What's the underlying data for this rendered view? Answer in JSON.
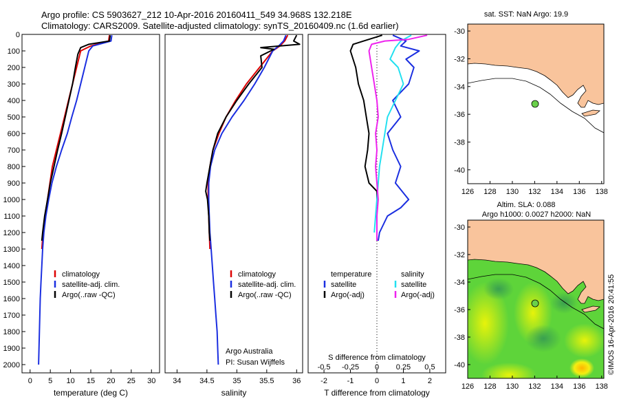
{
  "header": {
    "line1": "Argo profile: CS 5903627_212 10-Apr-2016 20160411_549 34.968S 132.218E",
    "line2": "Climatology: CARS2009. Satellite-adjusted climatology: synTS_20160409.nc (1.6d earlier)"
  },
  "colors": {
    "climatology": "#dd0000",
    "satellite": "#1a2ee0",
    "argo": "#000000",
    "satellite_s": "#22e0f0",
    "argo_s": "#ee22ee",
    "land": "#f9c49c"
  },
  "chart_data": [
    {
      "type": "line",
      "name": "temperature-profile",
      "xlabel": "temperature (deg C)",
      "ylabel": "",
      "xlim": [
        -2,
        32
      ],
      "ylim": [
        2050,
        0
      ],
      "xticks": [
        0,
        5,
        10,
        15,
        20,
        25,
        30
      ],
      "yticks": [
        0,
        100,
        200,
        300,
        400,
        500,
        600,
        700,
        800,
        900,
        1000,
        1100,
        1200,
        1300,
        1400,
        1500,
        1600,
        1700,
        1800,
        1900,
        2000
      ],
      "legend": [
        "climatology",
        "satellite-adj. clim.",
        "Argo(..raw -QC)"
      ],
      "legend_position": "lower-left",
      "series": [
        {
          "name": "climatology",
          "color": "#dd0000",
          "points": [
            [
              19.6,
              5
            ],
            [
              19.4,
              40
            ],
            [
              15,
              70
            ],
            [
              12.5,
              100
            ],
            [
              11.5,
              200
            ],
            [
              10.5,
              300
            ],
            [
              9.5,
              400
            ],
            [
              8.5,
              500
            ],
            [
              7.5,
              600
            ],
            [
              6.5,
              700
            ],
            [
              5.5,
              800
            ],
            [
              4.9,
              900
            ],
            [
              4.3,
              1000
            ],
            [
              3.7,
              1100
            ],
            [
              3.2,
              1200
            ],
            [
              2.9,
              1300
            ]
          ]
        },
        {
          "name": "satellite-adj. clim.",
          "color": "#1a2ee0",
          "points": [
            [
              20.2,
              5
            ],
            [
              20,
              40
            ],
            [
              15.5,
              70
            ],
            [
              14.5,
              100
            ],
            [
              13.5,
              200
            ],
            [
              12.5,
              300
            ],
            [
              11.5,
              400
            ],
            [
              10.3,
              500
            ],
            [
              9.2,
              600
            ],
            [
              7.8,
              700
            ],
            [
              6.5,
              800
            ],
            [
              5.4,
              900
            ],
            [
              4.6,
              1000
            ],
            [
              3.9,
              1100
            ],
            [
              3.4,
              1200
            ],
            [
              3.1,
              1300
            ],
            [
              2.9,
              1400
            ],
            [
              2.7,
              1500
            ],
            [
              2.5,
              1600
            ],
            [
              2.4,
              1700
            ],
            [
              2.3,
              1800
            ],
            [
              2.2,
              1900
            ],
            [
              2.1,
              2000
            ]
          ]
        },
        {
          "name": "Argo(..raw -QC)",
          "color": "#000000",
          "points": [
            [
              19.8,
              5
            ],
            [
              19.6,
              40
            ],
            [
              14.5,
              60
            ],
            [
              12.5,
              80
            ],
            [
              11.8,
              120
            ],
            [
              11.2,
              200
            ],
            [
              10.5,
              300
            ],
            [
              9.6,
              400
            ],
            [
              8.7,
              500
            ],
            [
              7.8,
              600
            ],
            [
              6.8,
              700
            ],
            [
              5.9,
              800
            ],
            [
              5.0,
              900
            ],
            [
              4.3,
              1000
            ],
            [
              3.6,
              1100
            ],
            [
              3.1,
              1200
            ],
            [
              2.9,
              1250
            ]
          ]
        }
      ]
    },
    {
      "type": "line",
      "name": "salinity-profile",
      "xlabel": "salinity",
      "xlim": [
        33.8,
        36.1
      ],
      "ylim": [
        2050,
        0
      ],
      "xticks": [
        34,
        34.5,
        35,
        35.5,
        36
      ],
      "xticklabels": [
        "34",
        "34.5",
        "35",
        "35.5",
        "36"
      ],
      "legend": [
        "climatology",
        "satellite-adj. clim.",
        "Argo(..raw -QC)"
      ],
      "legend_position": "middle-right",
      "annotation": [
        "Argo Australia",
        "PI: Susan Wijffels"
      ],
      "series": [
        {
          "name": "climatology",
          "color": "#dd0000",
          "points": [
            [
              35.85,
              5
            ],
            [
              35.8,
              40
            ],
            [
              35.72,
              70
            ],
            [
              35.6,
              100
            ],
            [
              35.38,
              200
            ],
            [
              35.16,
              300
            ],
            [
              34.98,
              400
            ],
            [
              34.82,
              500
            ],
            [
              34.7,
              600
            ],
            [
              34.6,
              700
            ],
            [
              34.55,
              800
            ],
            [
              34.52,
              900
            ],
            [
              34.52,
              1000
            ],
            [
              34.53,
              1100
            ],
            [
              34.54,
              1200
            ],
            [
              34.55,
              1300
            ]
          ]
        },
        {
          "name": "satellite-adj. clim.",
          "color": "#1a2ee0",
          "points": [
            [
              35.82,
              5
            ],
            [
              35.78,
              40
            ],
            [
              35.7,
              70
            ],
            [
              35.6,
              100
            ],
            [
              35.46,
              200
            ],
            [
              35.3,
              300
            ],
            [
              35.12,
              400
            ],
            [
              34.92,
              500
            ],
            [
              34.75,
              600
            ],
            [
              34.63,
              700
            ],
            [
              34.56,
              800
            ],
            [
              34.53,
              900
            ],
            [
              34.53,
              1000
            ],
            [
              34.54,
              1100
            ],
            [
              34.55,
              1200
            ],
            [
              34.57,
              1300
            ],
            [
              34.59,
              1400
            ],
            [
              34.61,
              1500
            ],
            [
              34.63,
              1600
            ],
            [
              34.65,
              1700
            ],
            [
              34.67,
              1800
            ],
            [
              34.68,
              1900
            ],
            [
              34.69,
              2000
            ]
          ]
        },
        {
          "name": "Argo(..raw -QC)",
          "color": "#000000",
          "points": [
            [
              36.0,
              5
            ],
            [
              35.95,
              40
            ],
            [
              36.05,
              60
            ],
            [
              35.4,
              80
            ],
            [
              35.62,
              90
            ],
            [
              35.4,
              130
            ],
            [
              35.42,
              200
            ],
            [
              35.2,
              300
            ],
            [
              35.0,
              400
            ],
            [
              34.82,
              500
            ],
            [
              34.68,
              600
            ],
            [
              34.6,
              700
            ],
            [
              34.55,
              800
            ],
            [
              34.5,
              900
            ],
            [
              34.48,
              950
            ],
            [
              34.51,
              1000
            ],
            [
              34.53,
              1100
            ],
            [
              34.54,
              1200
            ],
            [
              34.55,
              1250
            ]
          ]
        }
      ]
    },
    {
      "type": "line",
      "name": "difference-profile",
      "xlabel": "T difference from climatology",
      "xlabel_top": "S difference from climatology",
      "xlim": [
        -2.6,
        2.6
      ],
      "ylim": [
        2050,
        0
      ],
      "xticks": [
        -2,
        -1,
        0,
        1,
        2
      ],
      "xticklabels": [
        "-2",
        "-1",
        "0",
        "1",
        "2"
      ],
      "top_ticks": [
        -0.5,
        -0.25,
        0,
        0.25,
        0.5
      ],
      "top_ticklabels": [
        "-0.5",
        "-0.25",
        "0",
        "0.25",
        "0.5"
      ],
      "legend_temperature": {
        "title": "temperature",
        "items": [
          "satellite",
          "Argo(-adj)"
        ]
      },
      "legend_salinity": {
        "title": "salinity",
        "items": [
          "satellite",
          "Argo(-adj)"
        ]
      },
      "series": [
        {
          "name": "temperature satellite",
          "color": "#1a2ee0",
          "points": [
            [
              0.6,
              5
            ],
            [
              1.1,
              40
            ],
            [
              0.9,
              70
            ],
            [
              1.6,
              100
            ],
            [
              1.1,
              150
            ],
            [
              1.4,
              200
            ],
            [
              1.2,
              300
            ],
            [
              0.6,
              400
            ],
            [
              0.9,
              500
            ],
            [
              0.4,
              600
            ],
            [
              0.6,
              700
            ],
            [
              0.9,
              800
            ],
            [
              0.7,
              900
            ],
            [
              1.2,
              1000
            ],
            [
              0.9,
              1050
            ],
            [
              0.4,
              1100
            ],
            [
              0.1,
              1200
            ],
            [
              0.05,
              1250
            ]
          ]
        },
        {
          "name": "temperature Argo(-adj)",
          "color": "#000000",
          "points": [
            [
              0.2,
              5
            ],
            [
              -0.5,
              40
            ],
            [
              -0.9,
              60
            ],
            [
              -1.0,
              100
            ],
            [
              -0.8,
              200
            ],
            [
              -0.7,
              300
            ],
            [
              -0.5,
              400
            ],
            [
              -0.4,
              500
            ],
            [
              -0.3,
              600
            ],
            [
              -0.35,
              700
            ],
            [
              -0.45,
              800
            ],
            [
              -0.3,
              900
            ],
            [
              0.0,
              950
            ],
            [
              0.0,
              1000
            ]
          ]
        },
        {
          "name": "salinity satellite",
          "color": "#22e0f0",
          "points": [
            [
              1.3,
              5
            ],
            [
              0.9,
              40
            ],
            [
              0.7,
              80
            ],
            [
              0.5,
              150
            ],
            [
              0.8,
              200
            ],
            [
              1.0,
              300
            ],
            [
              0.7,
              400
            ],
            [
              0.4,
              500
            ],
            [
              0.3,
              600
            ],
            [
              0.2,
              700
            ],
            [
              0.1,
              800
            ],
            [
              0.05,
              900
            ],
            [
              0.0,
              1000
            ],
            [
              -0.05,
              1100
            ],
            [
              -0.1,
              1200
            ]
          ]
        },
        {
          "name": "salinity Argo(-adj)",
          "color": "#ee22ee",
          "points": [
            [
              1.9,
              5
            ],
            [
              1.2,
              30
            ],
            [
              0.3,
              40
            ],
            [
              -0.2,
              60
            ],
            [
              -0.3,
              100
            ],
            [
              -0.2,
              200
            ],
            [
              -0.1,
              300
            ],
            [
              0.0,
              400
            ],
            [
              0.05,
              500
            ],
            [
              -0.05,
              600
            ],
            [
              0.0,
              700
            ],
            [
              -0.05,
              800
            ],
            [
              0.0,
              900
            ],
            [
              0.05,
              1000
            ],
            [
              0.0,
              1100
            ],
            [
              0.0,
              1200
            ],
            [
              0.0,
              1250
            ]
          ]
        }
      ]
    },
    {
      "type": "map",
      "name": "sst-map",
      "title": "sat. SST: NaN Argo: 19.9",
      "xlim": [
        126,
        138.2
      ],
      "ylim": [
        -41,
        -29.5
      ],
      "xticks": [
        126,
        128,
        130,
        132,
        134,
        136,
        138
      ],
      "yticks": [
        -30,
        -32,
        -34,
        -36,
        -38,
        -40
      ],
      "argo_position": [
        132.22,
        -34.97
      ]
    },
    {
      "type": "heatmap",
      "name": "sla-map",
      "title": "Altim. SLA: 0.088",
      "subtitle": "Argo h1000: 0.0027 h2000: NaN",
      "xlim": [
        126,
        138.2
      ],
      "ylim": [
        -41,
        -29.5
      ],
      "xticks": [
        126,
        128,
        130,
        132,
        134,
        136,
        138
      ],
      "yticks": [
        -30,
        -32,
        -34,
        -36,
        -38,
        -40
      ],
      "argo_position": [
        132.22,
        -34.97
      ]
    }
  ],
  "footer": {
    "credit": "©IMOS 16-Apr-2016 20:41:55"
  }
}
